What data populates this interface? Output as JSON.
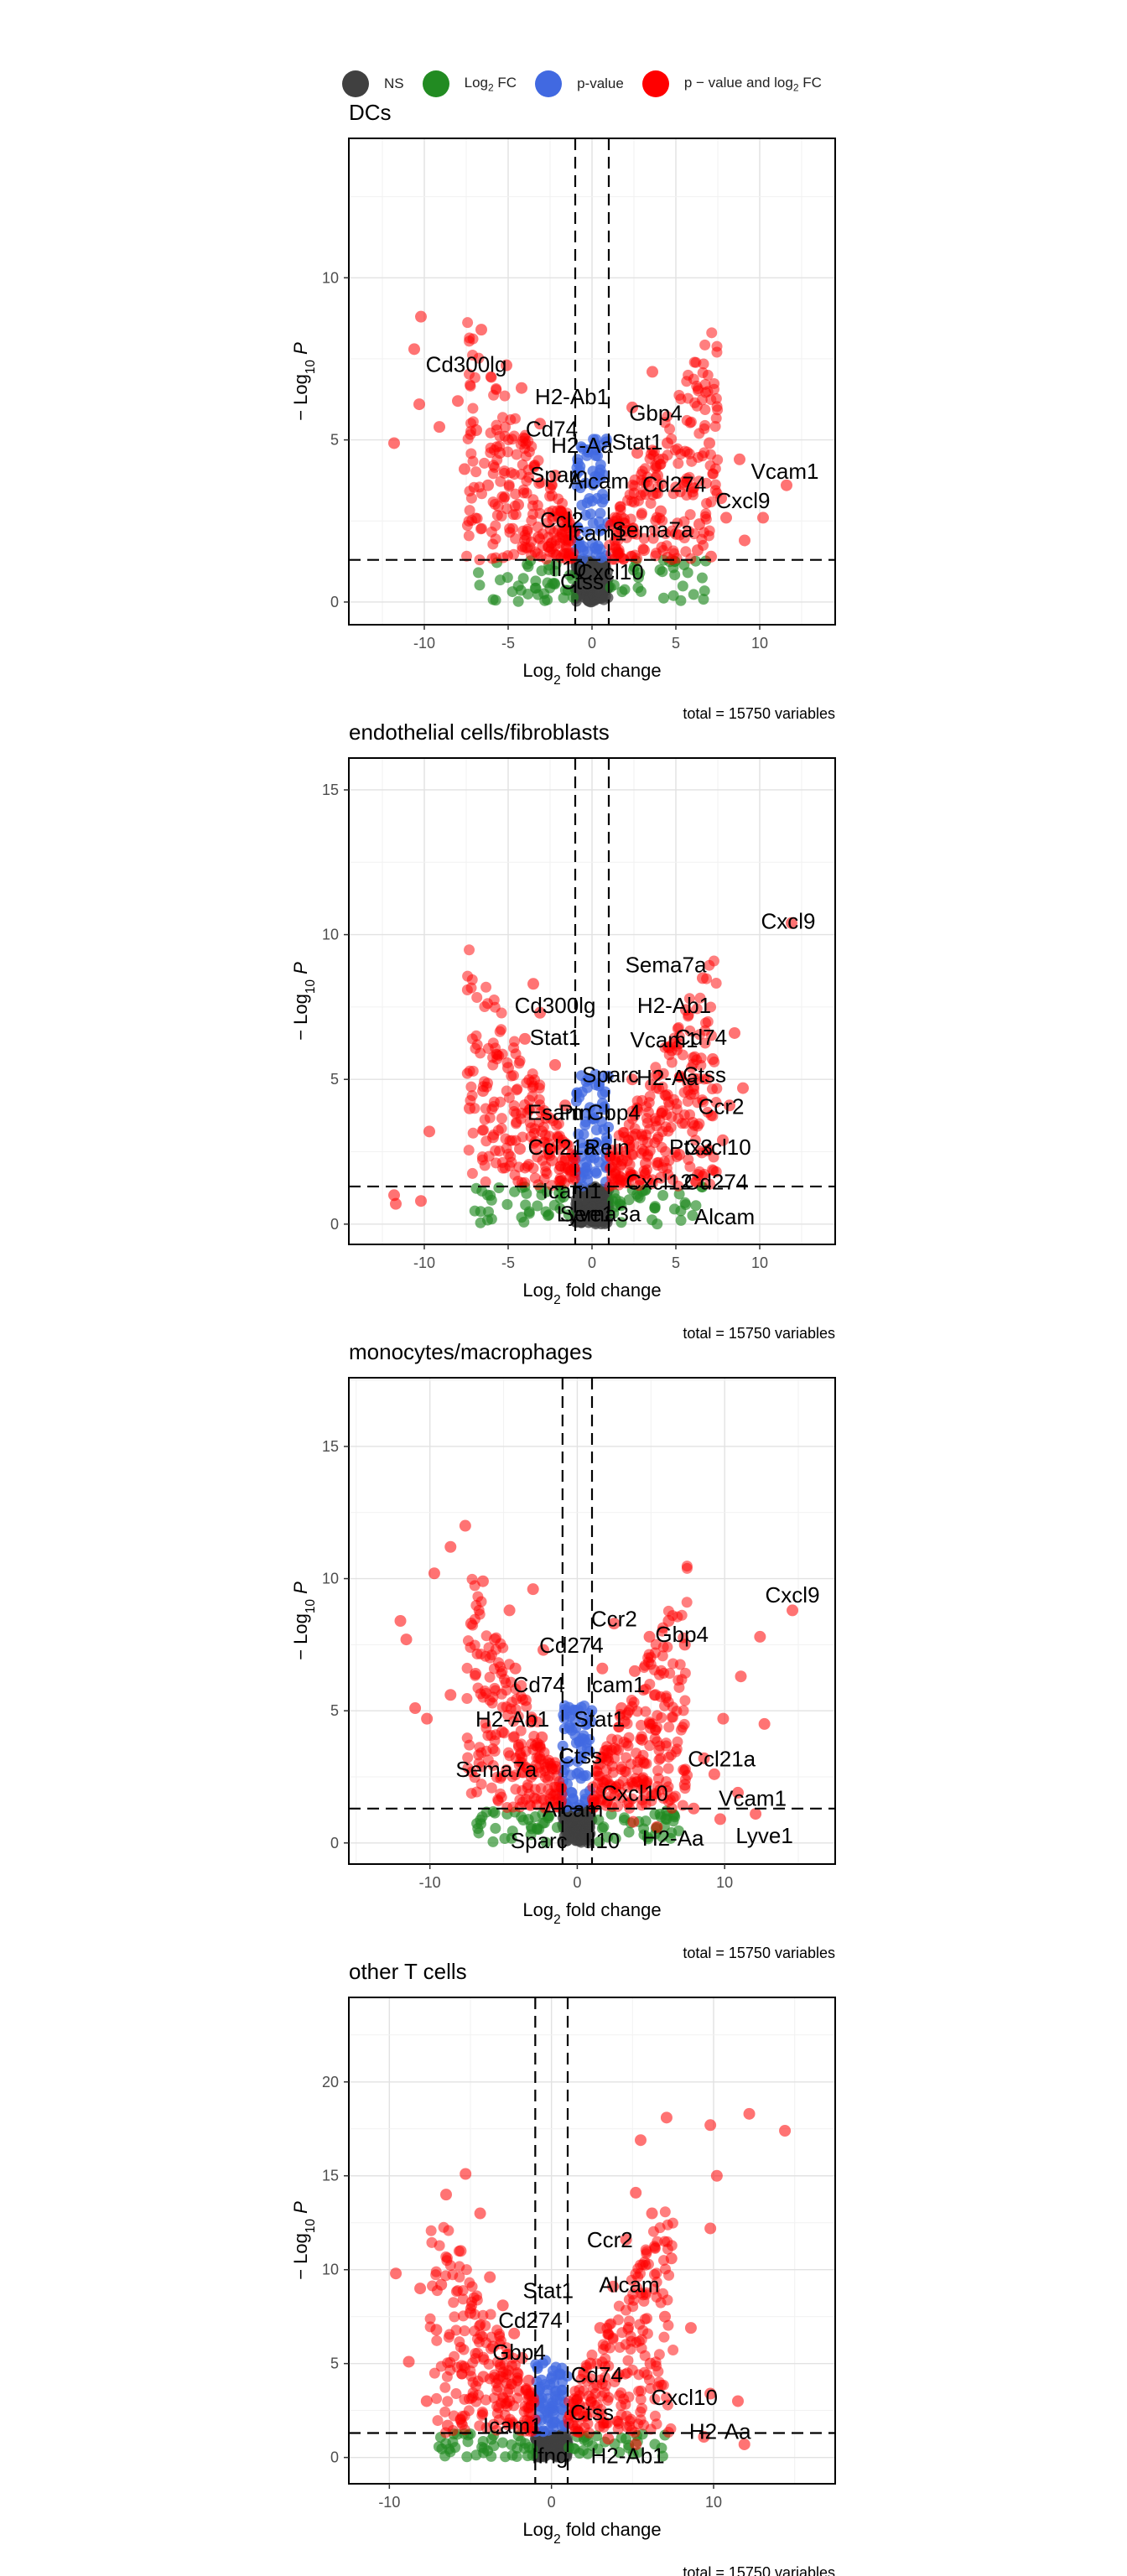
{
  "legend": {
    "items": [
      {
        "key": "ns",
        "label": "NS",
        "color": "#404040"
      },
      {
        "key": "fc",
        "label": "Log2 FC",
        "color": "#228B22"
      },
      {
        "key": "p",
        "label": "p-value",
        "color": "#4169E1"
      },
      {
        "key": "both",
        "label": "p − value and log2 FC",
        "color": "#FF0000"
      }
    ]
  },
  "chart_data": [
    {
      "type": "scatter",
      "title": "DCs",
      "xlabel": "Log2 fold change",
      "ylabel": "− Log10 P",
      "caption": "total = 15750 variables",
      "xlim": [
        -14.5,
        14.5
      ],
      "ylim": [
        -0.7,
        14.3
      ],
      "xticks": [
        -10,
        -5,
        0,
        5,
        10
      ],
      "yticks": [
        0,
        5,
        10
      ],
      "fc_cutoff": 1,
      "p_cutoff": 1.3,
      "points": [
        [
          -10.2,
          8.8
        ],
        [
          -10.6,
          7.8
        ],
        [
          -11.8,
          4.9
        ],
        [
          -10.3,
          6.1
        ],
        [
          -9.1,
          5.4
        ],
        [
          -6.6,
          8.4
        ],
        [
          -6.9,
          5.3
        ],
        [
          -7.6,
          4.1
        ],
        [
          -5.1,
          7.3
        ],
        [
          -4.2,
          6.6
        ],
        [
          -3.1,
          5.5
        ],
        [
          -2.2,
          3.9
        ],
        [
          -4.4,
          3.0
        ],
        [
          -3.2,
          2.0
        ],
        [
          -2.6,
          1.7
        ],
        [
          -1.5,
          2.6
        ],
        [
          -1.3,
          1.9
        ],
        [
          -5.5,
          4.6
        ],
        [
          -6.2,
          3.6
        ],
        [
          -8.0,
          6.2
        ],
        [
          2.4,
          6.0
        ],
        [
          3.6,
          7.1
        ],
        [
          4.5,
          4.9
        ],
        [
          5.5,
          3.7
        ],
        [
          6.4,
          2.4
        ],
        [
          7.7,
          3.2
        ],
        [
          8.8,
          4.4
        ],
        [
          11.6,
          3.6
        ],
        [
          10.2,
          2.6
        ],
        [
          9.1,
          1.9
        ],
        [
          2.0,
          2.2
        ],
        [
          3.1,
          1.6
        ],
        [
          4.1,
          2.8
        ],
        [
          5.0,
          2.1
        ],
        [
          6.3,
          1.6
        ],
        [
          7.1,
          1.4
        ],
        [
          3.9,
          3.9
        ],
        [
          2.7,
          4.6
        ],
        [
          7.0,
          4.9
        ],
        [
          8.0,
          2.6
        ]
      ],
      "labels": [
        {
          "text": "Cd300lg",
          "x": -7.5,
          "y": 7.1
        },
        {
          "text": "H2-Ab1",
          "x": -1.2,
          "y": 6.1
        },
        {
          "text": "Gbp4",
          "x": 3.8,
          "y": 5.6
        },
        {
          "text": "Cd74",
          "x": -2.4,
          "y": 5.1
        },
        {
          "text": "H2-Aa",
          "x": -0.6,
          "y": 4.6
        },
        {
          "text": "Stat1",
          "x": 2.7,
          "y": 4.7
        },
        {
          "text": "Vcam1",
          "x": 11.5,
          "y": 3.8
        },
        {
          "text": "Sparc",
          "x": -2.0,
          "y": 3.7
        },
        {
          "text": "Alcam",
          "x": 0.4,
          "y": 3.5
        },
        {
          "text": "Cd274",
          "x": 4.9,
          "y": 3.4
        },
        {
          "text": "Cxcl9",
          "x": 9.0,
          "y": 2.9
        },
        {
          "text": "Ccl2",
          "x": -1.8,
          "y": 2.3
        },
        {
          "text": "Icam1",
          "x": 0.3,
          "y": 1.9
        },
        {
          "text": "Sema7a",
          "x": 3.6,
          "y": 2.0
        },
        {
          "text": "Il10",
          "x": -1.4,
          "y": 0.8
        },
        {
          "text": "Cxcl10",
          "x": 1.1,
          "y": 0.7
        },
        {
          "text": "Ctss",
          "x": -0.6,
          "y": 0.4
        }
      ]
    },
    {
      "type": "scatter",
      "title": "endothelial cells/fibroblasts",
      "xlabel": "Log2 fold change",
      "ylabel": "− Log10 P",
      "caption": "total = 15750 variables",
      "xlim": [
        -14.5,
        14.5
      ],
      "ylim": [
        -0.7,
        16.1
      ],
      "xticks": [
        -10,
        -5,
        0,
        5,
        10
      ],
      "yticks": [
        0,
        5,
        10,
        15
      ],
      "fc_cutoff": 1,
      "p_cutoff": 1.3,
      "points": [
        [
          -11.8,
          1.0
        ],
        [
          -10.2,
          0.8
        ],
        [
          -11.7,
          0.7
        ],
        [
          -9.7,
          3.2
        ],
        [
          -7.3,
          4.0
        ],
        [
          -5.0,
          5.4
        ],
        [
          -4.0,
          6.4
        ],
        [
          -3.1,
          7.3
        ],
        [
          -3.5,
          8.3
        ],
        [
          -2.2,
          5.5
        ],
        [
          -1.6,
          4.1
        ],
        [
          -3.0,
          3.2
        ],
        [
          -2.4,
          2.2
        ],
        [
          -1.4,
          1.9
        ],
        [
          -4.3,
          2.6
        ],
        [
          -5.9,
          3.0
        ],
        [
          -6.5,
          4.6
        ],
        [
          1.8,
          2.2
        ],
        [
          2.6,
          3.1
        ],
        [
          3.5,
          4.8
        ],
        [
          4.6,
          6.1
        ],
        [
          5.6,
          7.4
        ],
        [
          6.6,
          8.5
        ],
        [
          7.2,
          5.7
        ],
        [
          8.2,
          4.1
        ],
        [
          7.8,
          2.9
        ],
        [
          6.3,
          1.7
        ],
        [
          5.2,
          2.4
        ],
        [
          4.1,
          1.6
        ],
        [
          3.2,
          2.1
        ],
        [
          11.9,
          10.4
        ],
        [
          8.5,
          6.6
        ],
        [
          9.0,
          4.7
        ],
        [
          6.0,
          3.5
        ],
        [
          4.2,
          3.9
        ],
        [
          2.4,
          5.0
        ]
      ],
      "labels": [
        {
          "text": "Cxcl9",
          "x": 11.7,
          "y": 10.2
        },
        {
          "text": "Sema7a",
          "x": 4.4,
          "y": 8.7
        },
        {
          "text": "Cd300lg",
          "x": -2.2,
          "y": 7.3
        },
        {
          "text": "H2-Ab1",
          "x": 4.9,
          "y": 7.3
        },
        {
          "text": "Stat1",
          "x": -2.2,
          "y": 6.2
        },
        {
          "text": "Vcam1",
          "x": 4.3,
          "y": 6.1
        },
        {
          "text": "Cd74",
          "x": 6.5,
          "y": 6.2
        },
        {
          "text": "Sparc",
          "x": 1.1,
          "y": 4.9
        },
        {
          "text": "H2-Aa",
          "x": 4.5,
          "y": 4.8
        },
        {
          "text": "Ctss",
          "x": 6.7,
          "y": 4.9
        },
        {
          "text": "Ccr2",
          "x": 7.7,
          "y": 3.8
        },
        {
          "text": "Esam",
          "x": -2.2,
          "y": 3.6
        },
        {
          "text": "Ptn",
          "x": -1.0,
          "y": 3.6
        },
        {
          "text": "Gbp4",
          "x": 1.3,
          "y": 3.6
        },
        {
          "text": "Ptx3",
          "x": 5.9,
          "y": 2.4
        },
        {
          "text": "Cxcl10",
          "x": 7.5,
          "y": 2.4
        },
        {
          "text": "Ccl21a",
          "x": -1.8,
          "y": 2.4
        },
        {
          "text": "Reln",
          "x": 0.9,
          "y": 2.4
        },
        {
          "text": "Cxcl12",
          "x": 4.0,
          "y": 1.2
        },
        {
          "text": "Cd274",
          "x": 7.4,
          "y": 1.2
        },
        {
          "text": "Icam1",
          "x": -1.2,
          "y": 0.9
        },
        {
          "text": "Lyve1",
          "x": -0.4,
          "y": 0.1
        },
        {
          "text": "Sema3a",
          "x": 0.5,
          "y": 0.1
        },
        {
          "text": "Alcam",
          "x": 7.9,
          "y": 0.0
        }
      ]
    },
    {
      "type": "scatter",
      "title": "monocytes/macrophages",
      "xlabel": "Log2 fold change",
      "ylabel": "− Log10 P",
      "caption": "total = 15750 variables",
      "xlim": [
        -15.5,
        17.5
      ],
      "ylim": [
        -0.8,
        17.6
      ],
      "xticks": [
        -10,
        0,
        10
      ],
      "yticks": [
        0,
        5,
        10,
        15
      ],
      "fc_cutoff": 1,
      "p_cutoff": 1.3,
      "points": [
        [
          -12.0,
          8.4
        ],
        [
          -11.6,
          7.7
        ],
        [
          -11.0,
          5.1
        ],
        [
          -9.7,
          10.2
        ],
        [
          -8.6,
          11.2
        ],
        [
          -7.6,
          12.0
        ],
        [
          -6.4,
          9.9
        ],
        [
          -7.2,
          8.3
        ],
        [
          -5.6,
          7.7
        ],
        [
          -4.2,
          6.6
        ],
        [
          -3.5,
          5.4
        ],
        [
          -2.4,
          4.0
        ],
        [
          -1.7,
          2.8
        ],
        [
          -5.1,
          4.2
        ],
        [
          -6.9,
          6.4
        ],
        [
          -8.6,
          5.6
        ],
        [
          -10.2,
          4.7
        ],
        [
          -4.6,
          8.8
        ],
        [
          -3.0,
          9.6
        ],
        [
          -2.3,
          7.3
        ],
        [
          2.0,
          3.5
        ],
        [
          3.0,
          5.1
        ],
        [
          3.9,
          6.5
        ],
        [
          4.9,
          7.8
        ],
        [
          6.2,
          8.4
        ],
        [
          7.3,
          7.5
        ],
        [
          2.5,
          8.3
        ],
        [
          1.7,
          6.6
        ],
        [
          5.3,
          5.6
        ],
        [
          4.4,
          3.9
        ],
        [
          7.3,
          2.2
        ],
        [
          8.6,
          3.2
        ],
        [
          9.9,
          4.7
        ],
        [
          11.1,
          6.3
        ],
        [
          12.4,
          7.8
        ],
        [
          14.6,
          8.8
        ],
        [
          10.9,
          1.9
        ],
        [
          12.7,
          4.5
        ],
        [
          9.3,
          2.6
        ],
        [
          7.9,
          1.3
        ],
        [
          12.1,
          1.1
        ],
        [
          3.8,
          0.8
        ],
        [
          5.4,
          0.6
        ],
        [
          9.7,
          0.9
        ]
      ],
      "labels": [
        {
          "text": "Cxcl9",
          "x": 14.6,
          "y": 9.1
        },
        {
          "text": "Ccr2",
          "x": 2.5,
          "y": 8.2
        },
        {
          "text": "Gbp4",
          "x": 7.1,
          "y": 7.6
        },
        {
          "text": "Cd274",
          "x": -0.4,
          "y": 7.2
        },
        {
          "text": "Icam1",
          "x": 2.6,
          "y": 5.7
        },
        {
          "text": "Cd74",
          "x": -2.6,
          "y": 5.7
        },
        {
          "text": "H2-Ab1",
          "x": -4.4,
          "y": 4.4
        },
        {
          "text": "Stat1",
          "x": 1.5,
          "y": 4.4
        },
        {
          "text": "Ctss",
          "x": 0.2,
          "y": 3.0
        },
        {
          "text": "Ccl21a",
          "x": 9.8,
          "y": 2.9
        },
        {
          "text": "Sema7a",
          "x": -5.5,
          "y": 2.5
        },
        {
          "text": "Cxcl10",
          "x": 3.9,
          "y": 1.6
        },
        {
          "text": "Alcam",
          "x": -0.3,
          "y": 1.0
        },
        {
          "text": "Vcam1",
          "x": 11.9,
          "y": 1.4
        },
        {
          "text": "Sparc",
          "x": -2.6,
          "y": -0.2
        },
        {
          "text": "Il10",
          "x": 1.7,
          "y": -0.2
        },
        {
          "text": "H2-Aa",
          "x": 6.5,
          "y": -0.1
        },
        {
          "text": "Lyve1",
          "x": 12.7,
          "y": 0.0
        }
      ]
    },
    {
      "type": "scatter",
      "title": "other T cells",
      "xlabel": "Log2 fold change",
      "ylabel": "− Log10 P",
      "caption": "total = 15750 variables",
      "xlim": [
        -12.5,
        17.5
      ],
      "ylim": [
        -1.4,
        24.5
      ],
      "xticks": [
        -10,
        0,
        10
      ],
      "yticks": [
        0,
        5,
        10,
        15,
        20
      ],
      "fc_cutoff": 1,
      "p_cutoff": 1.3,
      "points": [
        [
          -9.6,
          9.8
        ],
        [
          -8.1,
          9.0
        ],
        [
          -8.8,
          5.1
        ],
        [
          -6.5,
          14.0
        ],
        [
          -5.3,
          15.1
        ],
        [
          -4.4,
          13.0
        ],
        [
          -5.6,
          11.0
        ],
        [
          -3.8,
          9.6
        ],
        [
          -3.0,
          8.1
        ],
        [
          -2.3,
          6.6
        ],
        [
          -1.8,
          5.3
        ],
        [
          -1.4,
          4.1
        ],
        [
          -3.6,
          5.9
        ],
        [
          -5.0,
          7.7
        ],
        [
          -6.8,
          9.2
        ],
        [
          -7.1,
          6.8
        ],
        [
          -4.2,
          4.3
        ],
        [
          -2.6,
          3.0
        ],
        [
          -7.7,
          3.0
        ],
        [
          -6.4,
          1.7
        ],
        [
          2.4,
          5.0
        ],
        [
          3.0,
          6.9
        ],
        [
          3.8,
          9.1
        ],
        [
          4.6,
          11.6
        ],
        [
          5.2,
          14.1
        ],
        [
          5.5,
          16.9
        ],
        [
          7.1,
          18.1
        ],
        [
          6.2,
          13.0
        ],
        [
          7.4,
          10.6
        ],
        [
          7.0,
          7.5
        ],
        [
          6.1,
          5.0
        ],
        [
          9.8,
          12.2
        ],
        [
          10.2,
          15.0
        ],
        [
          12.2,
          18.3
        ],
        [
          14.4,
          17.4
        ],
        [
          9.8,
          17.7
        ],
        [
          8.6,
          6.9
        ],
        [
          9.8,
          3.4
        ],
        [
          11.5,
          3.0
        ],
        [
          3.5,
          1.0
        ],
        [
          5.2,
          0.7
        ],
        [
          9.4,
          1.1
        ],
        [
          11.9,
          0.7
        ]
      ],
      "labels": [
        {
          "text": "Ccr2",
          "x": 3.6,
          "y": 11.2
        },
        {
          "text": "Stat1",
          "x": -0.2,
          "y": 8.5
        },
        {
          "text": "Alcam",
          "x": 4.8,
          "y": 8.8
        },
        {
          "text": "Cd274",
          "x": -1.3,
          "y": 6.9
        },
        {
          "text": "Gbp4",
          "x": -2.0,
          "y": 5.2
        },
        {
          "text": "Cd74",
          "x": 2.8,
          "y": 4.0
        },
        {
          "text": "Cxcl10",
          "x": 8.2,
          "y": 2.8
        },
        {
          "text": "Ctss",
          "x": 2.5,
          "y": 2.0
        },
        {
          "text": "Icam1",
          "x": -2.4,
          "y": 1.3
        },
        {
          "text": "H2-Aa",
          "x": 10.4,
          "y": 1.0
        },
        {
          "text": "Ifng",
          "x": -0.1,
          "y": -0.3
        },
        {
          "text": "H2-Ab1",
          "x": 4.7,
          "y": -0.3
        }
      ]
    }
  ]
}
